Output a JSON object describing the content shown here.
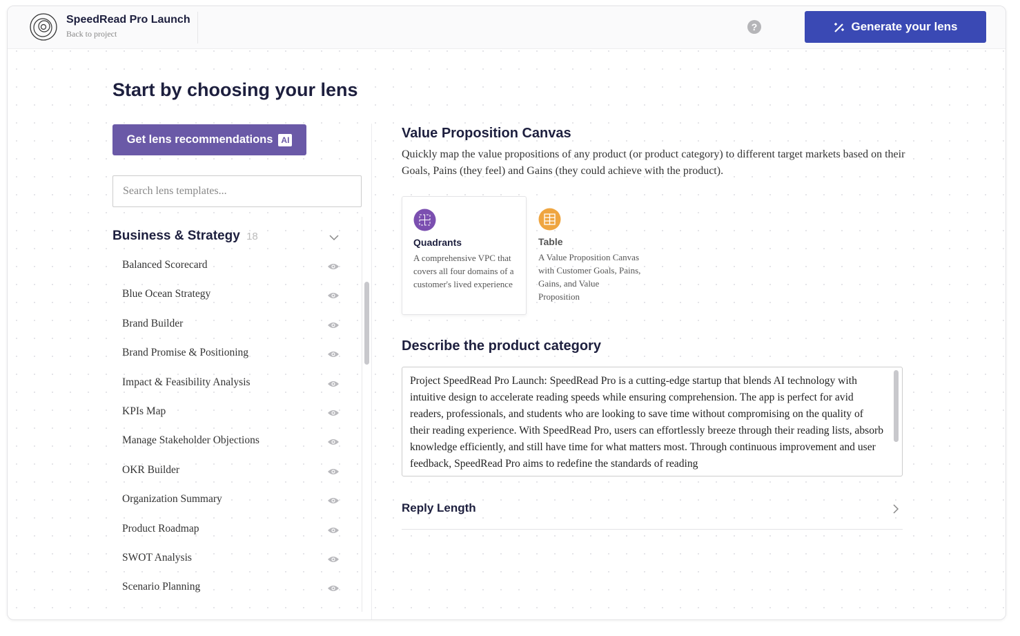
{
  "header": {
    "title": "SpeedRead Pro Launch",
    "subtitle": "Back to project",
    "button": "Generate your lens"
  },
  "main": {
    "heading": "Start by choosing your lens",
    "recommend_button": {
      "label": "Get lens recommendations",
      "badge": "AI"
    },
    "search_placeholder": "Search lens templates...",
    "category": {
      "name": "Business & Strategy",
      "count": 18,
      "items": [
        "Balanced Scorecard",
        "Blue Ocean Strategy",
        "Brand Builder",
        "Brand Promise & Positioning",
        "Impact & Feasibility Analysis",
        "KPIs Map",
        "Manage Stakeholder Objections",
        "OKR Builder",
        "Organization Summary",
        "Product Roadmap",
        "SWOT Analysis",
        "Scenario Planning"
      ]
    }
  },
  "detail": {
    "title": "Value Proposition Canvas",
    "description": "Quickly map the value propositions of any product (or product category) to different target markets based on their Goals, Pains (they feel) and Gains (they could achieve with the product).",
    "options": [
      {
        "name": "Quadrants",
        "description": "A comprehensive VPC that covers all four domains of a customer's lived experience"
      },
      {
        "name": "Table",
        "description": "A Value Proposition Canvas with Customer Goals, Pains, Gains, and Value Proposition"
      }
    ],
    "describe_heading": "Describe the product category",
    "describe_text": "Project SpeedRead Pro Launch: SpeedRead Pro is a cutting-edge startup that blends AI technology with intuitive design to accelerate reading speeds while ensuring comprehension. The app is perfect for avid readers, professionals, and students who are looking to save time without compromising on the quality of their reading experience. With SpeedRead Pro, users can effortlessly breeze through their reading lists, absorb knowledge efficiently, and still have time for what matters most. Through continuous improvement and user feedback, SpeedRead Pro aims to redefine the standards of reading",
    "reply_length": "Reply Length"
  }
}
